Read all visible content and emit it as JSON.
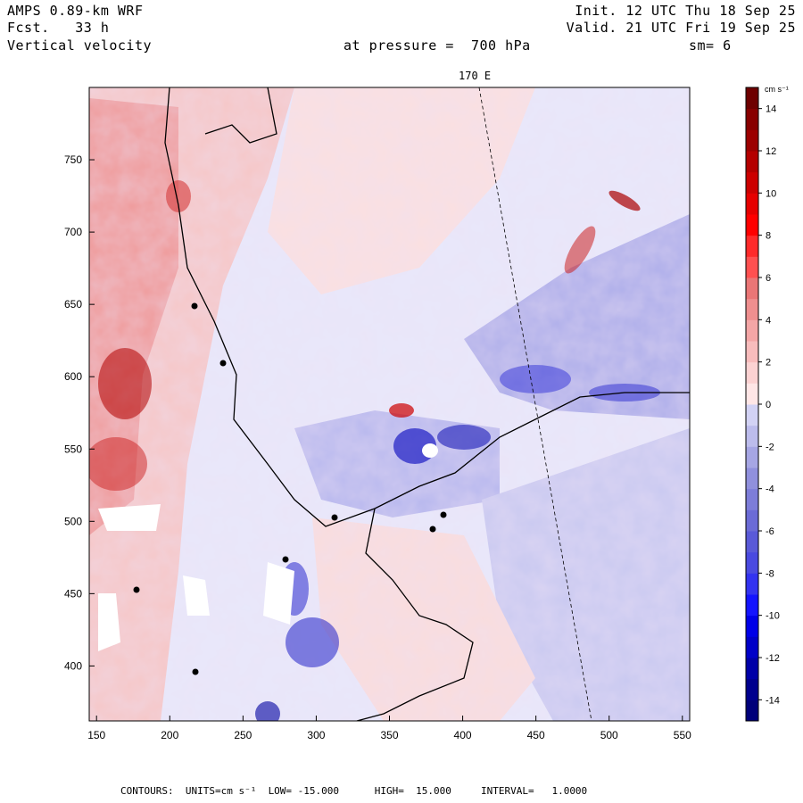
{
  "header": {
    "model": "AMPS 0.89-km WRF",
    "forecast": "Fcst.   33 h",
    "field": "Vertical velocity",
    "init": "Init. 12 UTC Thu 18 Sep 25",
    "valid": "Valid. 21 UTC Fri 19 Sep 25",
    "level": "at pressure =  700 hPa",
    "smooth": "sm= 6"
  },
  "meridian_label": "170 E",
  "footer": {
    "text": "CONTOURS:  UNITS=cm s⁻¹  LOW= -15.000      HIGH=  15.000     INTERVAL=   1.0000"
  },
  "colorbar": {
    "units": "cm s⁻¹",
    "ticks": [
      "14",
      "12",
      "10",
      "8",
      "6",
      "4",
      "2",
      "0",
      "-2",
      "-4",
      "-6",
      "-8",
      "-10",
      "-12",
      "-14"
    ],
    "low": -15,
    "high": 15,
    "interval": 1,
    "colors": [
      "#00007a",
      "#00008e",
      "#0000a8",
      "#0000c8",
      "#0000e8",
      "#1414ff",
      "#3333f0",
      "#4a4ae0",
      "#5a5ad8",
      "#6b6bd6",
      "#7d7dd9",
      "#9090dd",
      "#a6a6e4",
      "#bcbcec",
      "#d2d2f4",
      "#ffe6e6",
      "#fcd2d2",
      "#f8bcbc",
      "#f4a6a6",
      "#ef8f8f",
      "#ea7676",
      "#ff5050",
      "#ff2a2a",
      "#ff0000",
      "#e60000",
      "#cc0000",
      "#b40000",
      "#9c0000",
      "#880000",
      "#6e0000"
    ]
  },
  "chart_data": {
    "type": "heatmap",
    "title": "Vertical velocity",
    "xlabel": "",
    "ylabel": "",
    "x_ticks": [
      150,
      200,
      250,
      300,
      350,
      400,
      450,
      500,
      550
    ],
    "y_ticks": [
      400,
      450,
      500,
      550,
      600,
      650,
      700,
      750
    ],
    "xlim": [
      145,
      555
    ],
    "ylim": [
      362,
      800
    ],
    "value_range": [
      -15,
      15
    ],
    "contour_interval": 1
  }
}
